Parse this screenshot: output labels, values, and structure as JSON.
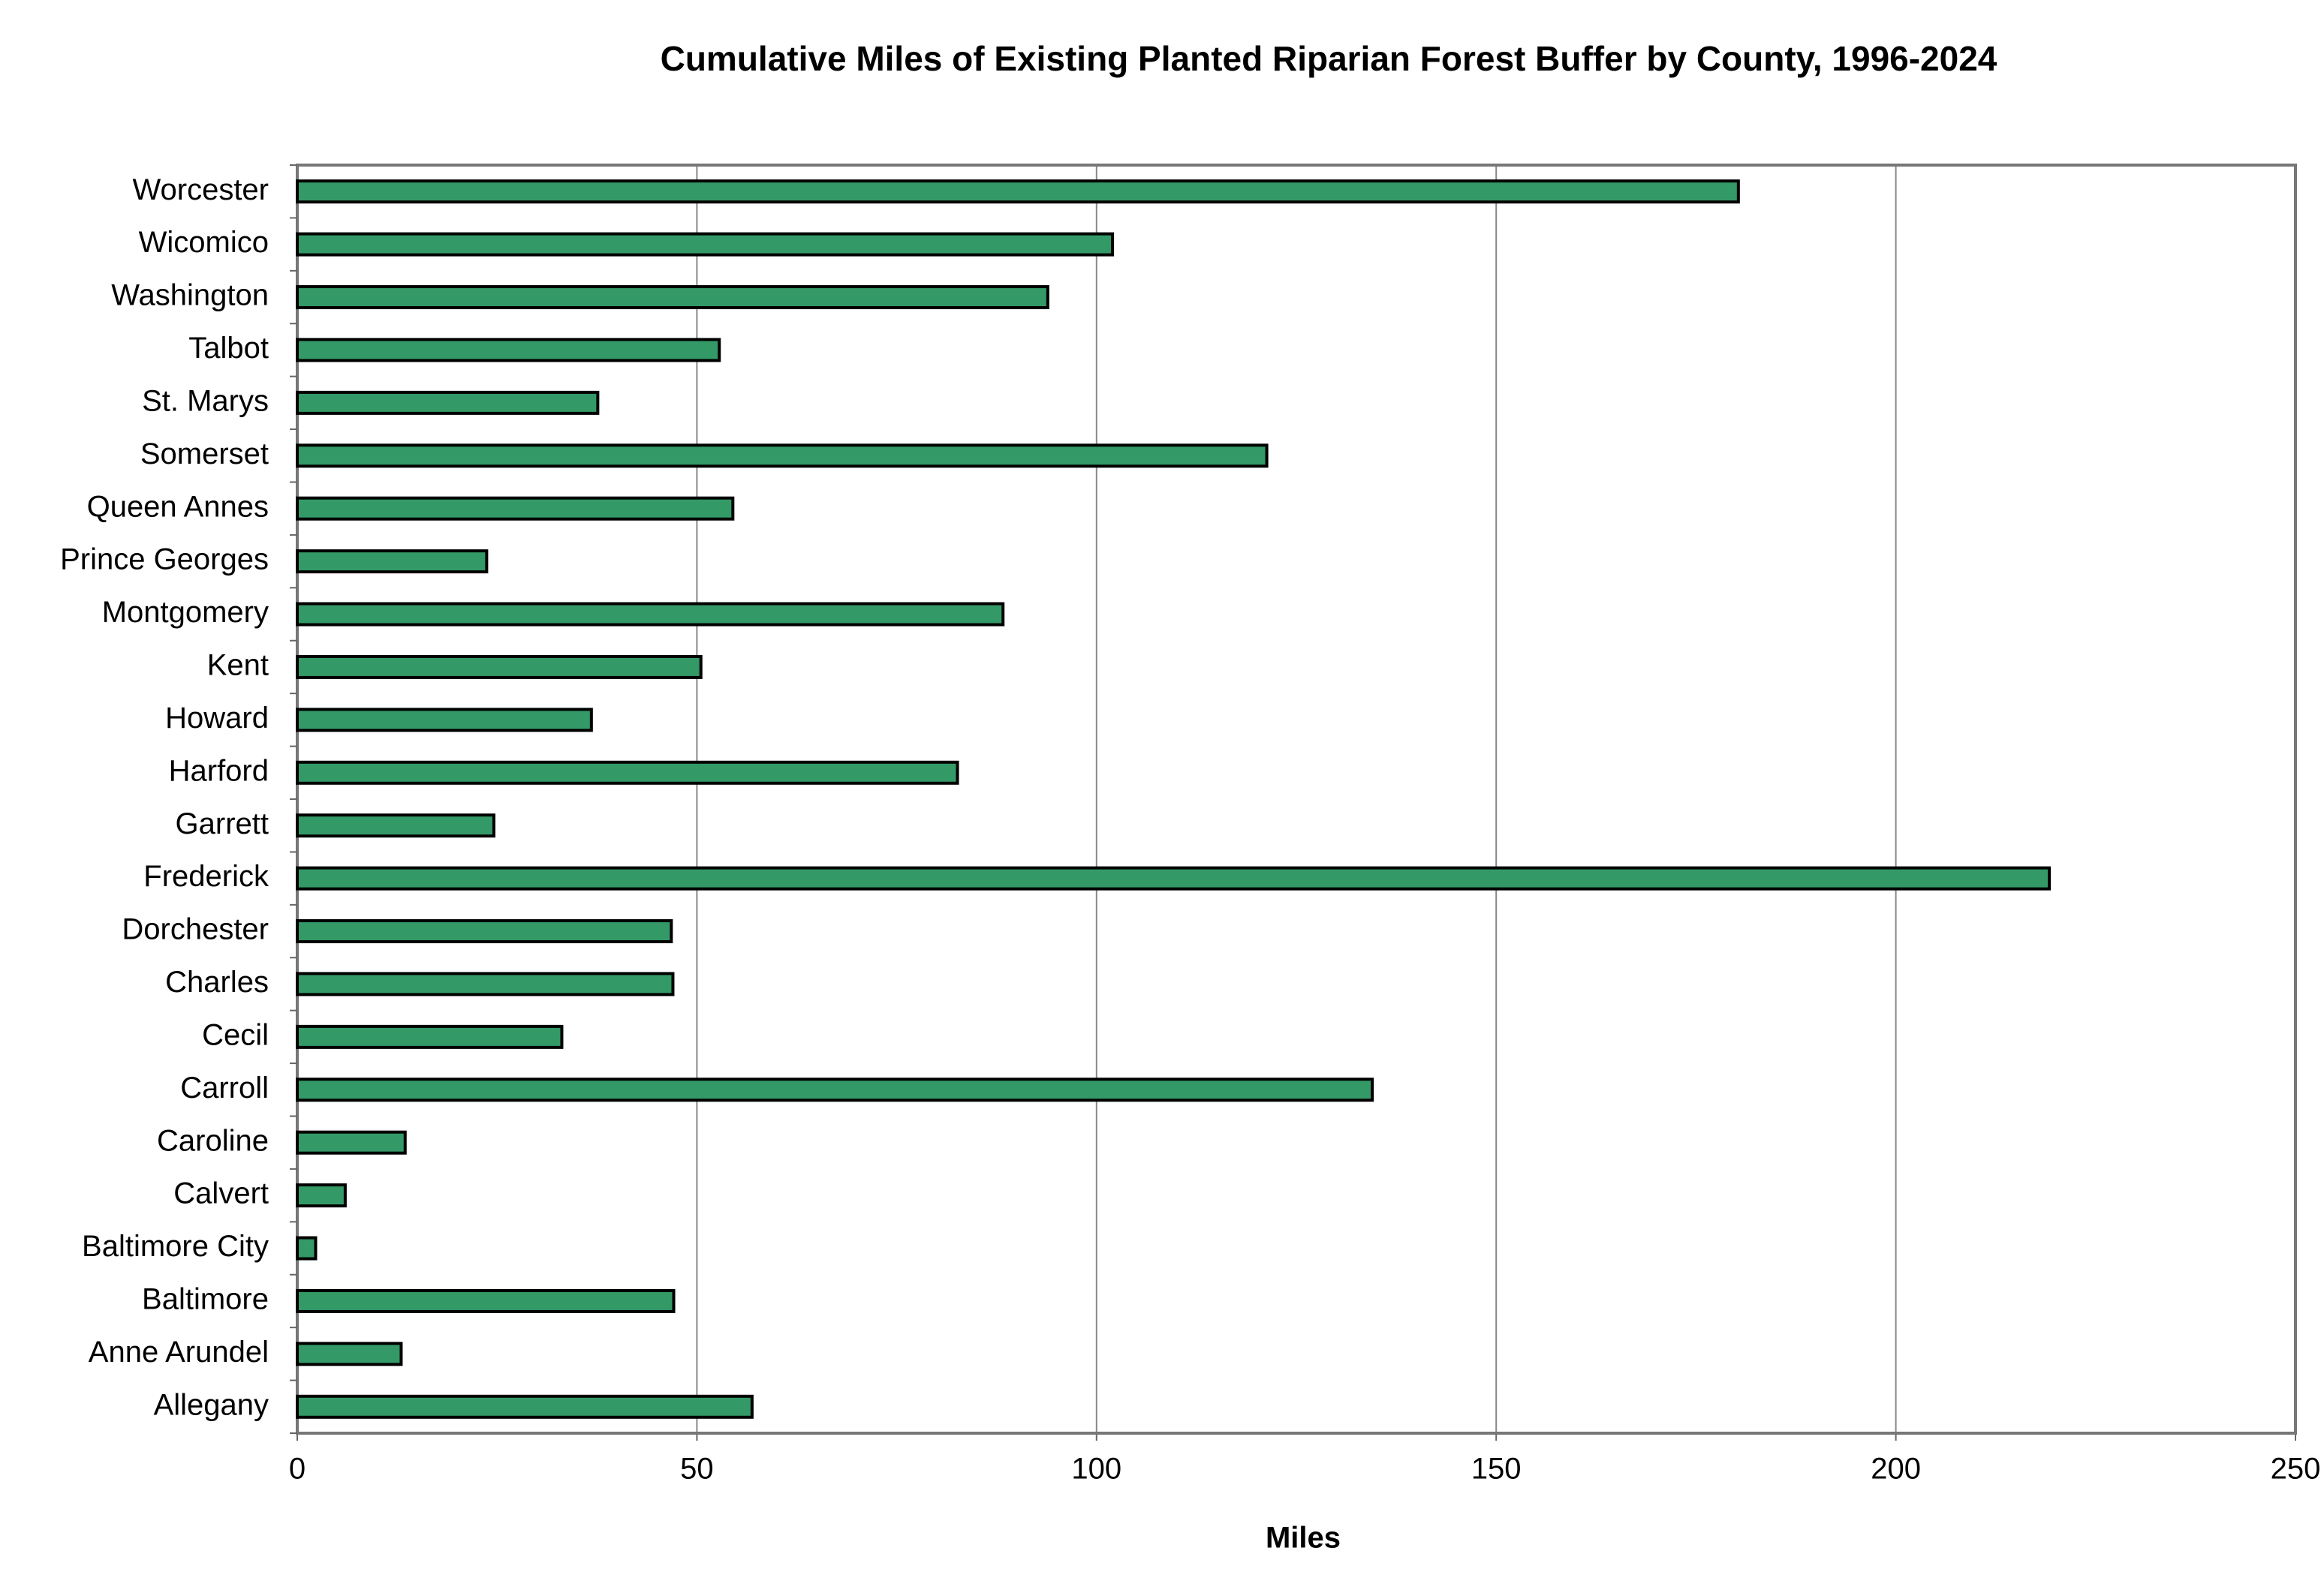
{
  "chart_data": {
    "type": "bar",
    "orientation": "horizontal",
    "title": "Cumulative Miles of Existing Planted Riparian Forest Buffer by County, 1996-2024",
    "x_label": "Miles",
    "categories": [
      "Allegany",
      "Anne Arundel",
      "Baltimore",
      "Baltimore City",
      "Calvert",
      "Caroline",
      "Carroll",
      "Cecil",
      "Charles",
      "Dorchester",
      "Frederick",
      "Garrett",
      "Harford",
      "Howard",
      "Kent",
      "Montgomery",
      "Prince Georges",
      "Queen Annes",
      "Somerset",
      "St. Marys",
      "Talbot",
      "Washington",
      "Wicomico",
      "Worcester"
    ],
    "values": [
      56.9,
      13.0,
      47.1,
      2.3,
      6.0,
      13.5,
      134.5,
      33.1,
      47.0,
      46.8,
      219.2,
      24.6,
      82.6,
      36.8,
      50.5,
      88.3,
      23.7,
      54.5,
      121.3,
      37.6,
      52.8,
      93.9,
      102.0,
      180.3
    ],
    "color": "#339966",
    "xlim": [
      0,
      250
    ],
    "xticks": [
      0,
      50,
      100,
      150,
      200,
      250
    ],
    "grid": true
  }
}
